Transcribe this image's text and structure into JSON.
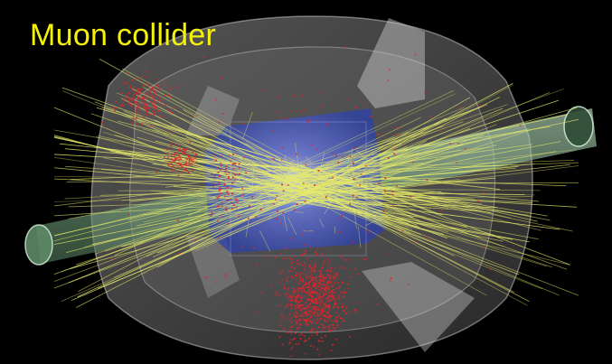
{
  "slide": {
    "title": "Muon collider"
  },
  "colors": {
    "background": "#000000",
    "title": "#f4f20a",
    "tracks": "#e8ec6a",
    "hits": "#e0232a",
    "inner_tracker": "#4a5fe0",
    "beam_pipe": "#9ec9a6",
    "detector_shell": "#c8c8c8"
  },
  "scene": {
    "subject": "muon-collider-event-display"
  }
}
